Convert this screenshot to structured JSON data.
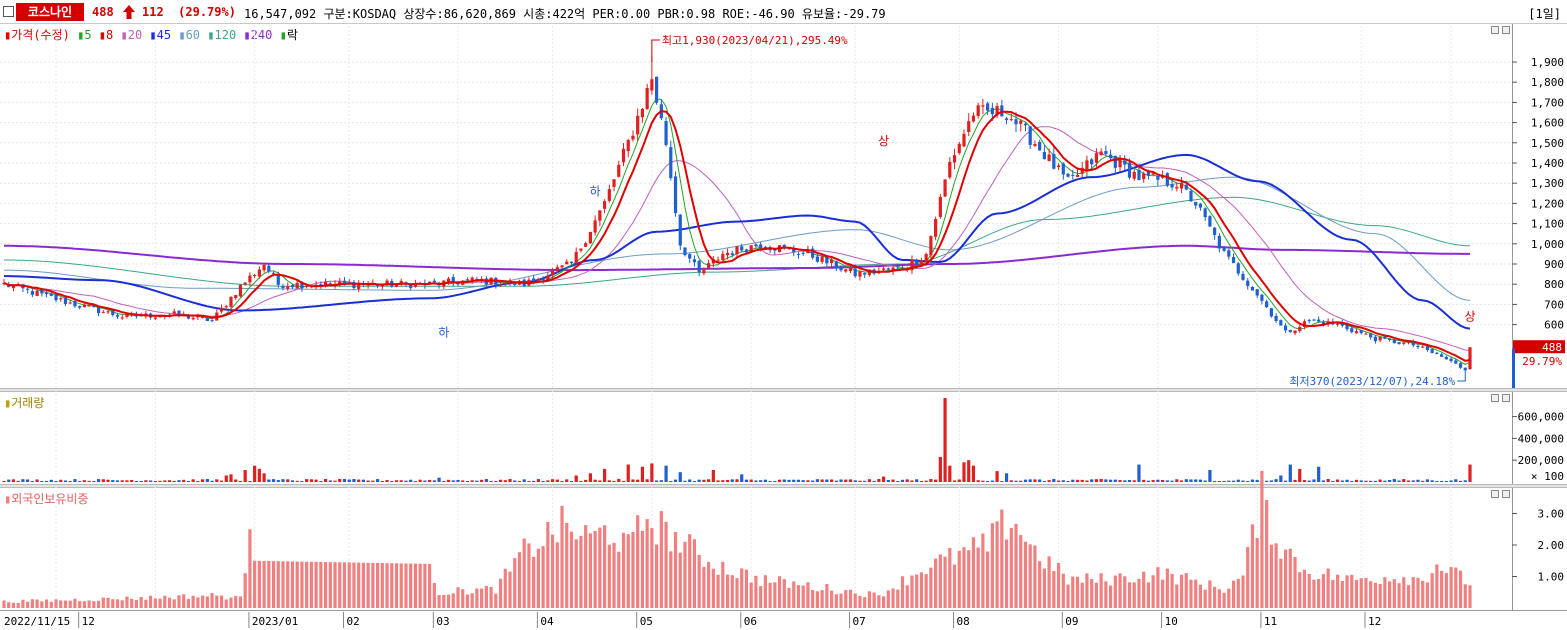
{
  "header": {
    "stock_name": "코스나인",
    "price": "488",
    "change": "112",
    "change_pct": "(29.79%)",
    "info": "16,547,092  구분:KOSDAQ  상장수:86,620,869  시총:422억  PER:0.00  PBR:0.98  ROE:-46.90  유보율:-29.79",
    "period": "[1일]"
  },
  "colors": {
    "up": "#e02020",
    "down": "#1f5fd0",
    "ma5": "#27a327",
    "ma8": "#e00000",
    "ma20": "#c060c0",
    "ma45": "#1a2ed8",
    "ma60": "#6a9cc8",
    "ma120": "#3aa88a",
    "ma240": "#8a2bd0",
    "foreign": "#f08080"
  },
  "legend": {
    "price": "가격(수정)",
    "ma": [
      {
        "label": "5",
        "color": "#27a327"
      },
      {
        "label": "8",
        "color": "#e00000"
      },
      {
        "label": "20",
        "color": "#c060c0"
      },
      {
        "label": "45",
        "color": "#1a2ed8"
      },
      {
        "label": "60",
        "color": "#6a9cc8"
      },
      {
        "label": "120",
        "color": "#3aa88a"
      },
      {
        "label": "240",
        "color": "#8a2bd0"
      }
    ],
    "tail": "락"
  },
  "annotations": {
    "high": "최고1,930(2023/04/21),295.49%",
    "low": "최저370(2023/12/07),24.18%",
    "ha1": "하",
    "ha2": "하",
    "sang1": "상",
    "sang2": "상"
  },
  "price_tag": {
    "value": "488",
    "pct": "29.79%"
  },
  "panels": {
    "volume_title": "거래량",
    "volume_unit": "× 100",
    "foreign_title": "외국인보유비중"
  },
  "chart_data": [
    {
      "type": "candlestick",
      "title": "가격(수정)",
      "ylim": [
        370,
        2000
      ],
      "y_ticks": [
        "600",
        "700",
        "800",
        "900",
        "1,000",
        "1,100",
        "1,200",
        "1,300",
        "1,400",
        "1,500",
        "1,600",
        "1,700",
        "1,800",
        "1,900"
      ],
      "x_labels": [
        "2022/11/15",
        "12",
        "2023/01",
        "02",
        "03",
        "04",
        "05",
        "06",
        "07",
        "08",
        "09",
        "10",
        "11",
        "12"
      ],
      "anchors": [
        {
          "d": 0,
          "p": 800
        },
        {
          "d": 15,
          "p": 700
        },
        {
          "d": 25,
          "p": 640
        },
        {
          "d": 36,
          "p": 650
        },
        {
          "d": 44,
          "p": 620
        },
        {
          "d": 50,
          "p": 790
        },
        {
          "d": 55,
          "p": 900
        },
        {
          "d": 58,
          "p": 800
        },
        {
          "d": 90,
          "p": 800
        },
        {
          "d": 100,
          "p": 820
        },
        {
          "d": 110,
          "p": 800
        },
        {
          "d": 120,
          "p": 900
        },
        {
          "d": 127,
          "p": 1200
        },
        {
          "d": 132,
          "p": 1500
        },
        {
          "d": 137,
          "p": 1820
        },
        {
          "d": 140,
          "p": 1500
        },
        {
          "d": 143,
          "p": 1000
        },
        {
          "d": 147,
          "p": 850
        },
        {
          "d": 152,
          "p": 950
        },
        {
          "d": 160,
          "p": 1000
        },
        {
          "d": 170,
          "p": 950
        },
        {
          "d": 180,
          "p": 850
        },
        {
          "d": 190,
          "p": 880
        },
        {
          "d": 195,
          "p": 950
        },
        {
          "d": 200,
          "p": 1400
        },
        {
          "d": 205,
          "p": 1650
        },
        {
          "d": 212,
          "p": 1650
        },
        {
          "d": 218,
          "p": 1500
        },
        {
          "d": 225,
          "p": 1300
        },
        {
          "d": 232,
          "p": 1450
        },
        {
          "d": 240,
          "p": 1330
        },
        {
          "d": 248,
          "p": 1300
        },
        {
          "d": 252,
          "p": 1200
        },
        {
          "d": 258,
          "p": 950
        },
        {
          "d": 265,
          "p": 750
        },
        {
          "d": 271,
          "p": 560
        },
        {
          "d": 276,
          "p": 620
        },
        {
          "d": 282,
          "p": 600
        },
        {
          "d": 290,
          "p": 530
        },
        {
          "d": 298,
          "p": 500
        },
        {
          "d": 304,
          "p": 440
        },
        {
          "d": 309,
          "p": 378
        },
        {
          "d": 310,
          "p": 488
        }
      ],
      "ma_anchors": {
        "ma45": [
          [
            0,
            840
          ],
          [
            20,
            820
          ],
          [
            50,
            670
          ],
          [
            90,
            730
          ],
          [
            110,
            810
          ],
          [
            125,
            920
          ],
          [
            138,
            1060
          ],
          [
            155,
            1110
          ],
          [
            170,
            1140
          ],
          [
            180,
            1110
          ],
          [
            190,
            920
          ],
          [
            198,
            910
          ],
          [
            210,
            1150
          ],
          [
            230,
            1330
          ],
          [
            250,
            1440
          ],
          [
            265,
            1310
          ],
          [
            285,
            1020
          ],
          [
            300,
            720
          ],
          [
            310,
            580
          ]
        ],
        "ma60": [
          [
            0,
            870
          ],
          [
            40,
            780
          ],
          [
            90,
            770
          ],
          [
            140,
            950
          ],
          [
            180,
            1070
          ],
          [
            200,
            970
          ],
          [
            240,
            1280
          ],
          [
            260,
            1330
          ],
          [
            290,
            1050
          ],
          [
            310,
            720
          ]
        ],
        "ma120": [
          [
            0,
            920
          ],
          [
            60,
            790
          ],
          [
            110,
            790
          ],
          [
            150,
            860
          ],
          [
            190,
            900
          ],
          [
            220,
            1120
          ],
          [
            260,
            1230
          ],
          [
            290,
            1090
          ],
          [
            310,
            990
          ]
        ],
        "ma240": [
          [
            0,
            990
          ],
          [
            60,
            900
          ],
          [
            120,
            870
          ],
          [
            170,
            880
          ],
          [
            200,
            900
          ],
          [
            250,
            990
          ],
          [
            270,
            970
          ],
          [
            310,
            950
          ]
        ]
      }
    },
    {
      "type": "bar",
      "title": "거래량",
      "unit": "× 100",
      "y_ticks": [
        "200,000",
        "400,000",
        "600,000"
      ],
      "ylim": [
        0,
        800000
      ],
      "spikes": [
        {
          "d": 47,
          "v": 60000
        },
        {
          "d": 48,
          "v": 70000
        },
        {
          "d": 51,
          "v": 110000
        },
        {
          "d": 53,
          "v": 150000
        },
        {
          "d": 54,
          "v": 120000
        },
        {
          "d": 55,
          "v": 80000
        },
        {
          "d": 92,
          "v": 40000
        },
        {
          "d": 121,
          "v": 60000
        },
        {
          "d": 124,
          "v": 80000
        },
        {
          "d": 127,
          "v": 120000
        },
        {
          "d": 132,
          "v": 160000
        },
        {
          "d": 135,
          "v": 140000
        },
        {
          "d": 137,
          "v": 170000
        },
        {
          "d": 140,
          "v": 150000
        },
        {
          "d": 143,
          "v": 90000
        },
        {
          "d": 150,
          "v": 110000
        },
        {
          "d": 156,
          "v": 70000
        },
        {
          "d": 186,
          "v": 50000
        },
        {
          "d": 198,
          "v": 230000
        },
        {
          "d": 199,
          "v": 770000
        },
        {
          "d": 200,
          "v": 150000
        },
        {
          "d": 203,
          "v": 180000
        },
        {
          "d": 204,
          "v": 200000
        },
        {
          "d": 205,
          "v": 150000
        },
        {
          "d": 210,
          "v": 100000
        },
        {
          "d": 212,
          "v": 80000
        },
        {
          "d": 240,
          "v": 160000
        },
        {
          "d": 255,
          "v": 110000
        },
        {
          "d": 270,
          "v": 60000
        },
        {
          "d": 272,
          "v": 160000
        },
        {
          "d": 274,
          "v": 120000
        },
        {
          "d": 278,
          "v": 140000
        },
        {
          "d": 310,
          "v": 160000
        }
      ]
    },
    {
      "type": "bar",
      "title": "외국인보유비중",
      "y_ticks": [
        "1.00",
        "2.00",
        "3.00"
      ],
      "ylim": [
        0,
        3.7
      ],
      "anchors": [
        {
          "d": 0,
          "v": 0.2
        },
        {
          "d": 25,
          "v": 0.3
        },
        {
          "d": 45,
          "v": 0.4
        },
        {
          "d": 50,
          "v": 0.3
        },
        {
          "d": 52,
          "v": 2.5
        },
        {
          "d": 53,
          "v": 1.5
        },
        {
          "d": 90,
          "v": 1.4
        },
        {
          "d": 92,
          "v": 0.5
        },
        {
          "d": 104,
          "v": 0.6
        },
        {
          "d": 110,
          "v": 1.8
        },
        {
          "d": 118,
          "v": 2.6
        },
        {
          "d": 124,
          "v": 2.2
        },
        {
          "d": 128,
          "v": 2.5
        },
        {
          "d": 132,
          "v": 1.9
        },
        {
          "d": 136,
          "v": 2.9
        },
        {
          "d": 140,
          "v": 2.4
        },
        {
          "d": 150,
          "v": 1.4
        },
        {
          "d": 160,
          "v": 0.9
        },
        {
          "d": 175,
          "v": 0.6
        },
        {
          "d": 185,
          "v": 0.4
        },
        {
          "d": 195,
          "v": 1.3
        },
        {
          "d": 208,
          "v": 2.0
        },
        {
          "d": 213,
          "v": 2.9
        },
        {
          "d": 218,
          "v": 1.8
        },
        {
          "d": 225,
          "v": 0.9
        },
        {
          "d": 232,
          "v": 0.9
        },
        {
          "d": 245,
          "v": 1.1
        },
        {
          "d": 258,
          "v": 0.6
        },
        {
          "d": 262,
          "v": 1.0
        },
        {
          "d": 266,
          "v": 3.5
        },
        {
          "d": 269,
          "v": 2.2
        },
        {
          "d": 275,
          "v": 1.2
        },
        {
          "d": 285,
          "v": 0.9
        },
        {
          "d": 295,
          "v": 1.0
        },
        {
          "d": 300,
          "v": 0.9
        },
        {
          "d": 303,
          "v": 1.4
        },
        {
          "d": 310,
          "v": 0.8
        }
      ]
    }
  ]
}
